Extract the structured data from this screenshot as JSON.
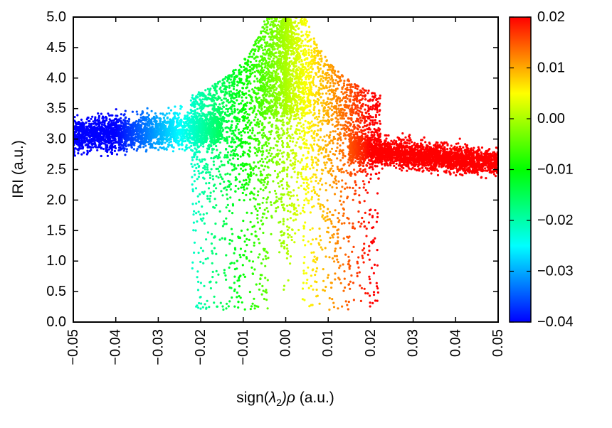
{
  "chart_data": {
    "type": "scatter",
    "title": "",
    "xlabel_parts": {
      "prefix": "sign(",
      "symbol": "λ",
      "subscript": "2",
      "suffix_symbol": ")ρ",
      "unit": " (a.u.)"
    },
    "ylabel": "IRI (a.u.)",
    "xlim": [
      -0.05,
      0.05
    ],
    "ylim": [
      0.0,
      5.0
    ],
    "xticks": [
      "−0.05",
      "−0.04",
      "−0.03",
      "−0.02",
      "−0.01",
      "0.00",
      "0.01",
      "0.02",
      "0.03",
      "0.04",
      "0.05"
    ],
    "yticks": [
      "0.0",
      "0.5",
      "1.0",
      "1.5",
      "2.0",
      "2.5",
      "3.0",
      "3.5",
      "4.0",
      "4.5",
      "5.0"
    ],
    "grid": false,
    "colorbar": {
      "range": [
        -0.04,
        0.02
      ],
      "colormap": [
        "#0000ff",
        "#00ffff",
        "#00ff00",
        "#ffff00",
        "#ff0000"
      ],
      "ticks": [
        "0.02",
        "0.01",
        "0.00",
        "−0.01",
        "−0.02",
        "−0.03",
        "−0.04"
      ],
      "tick_values": [
        0.02,
        0.01,
        0.0,
        -0.01,
        -0.02,
        -0.03,
        -0.04
      ]
    },
    "colored_by": "sign(λ2)ρ",
    "point_clusters": [
      {
        "region": "left tail",
        "x_range": [
          -0.05,
          -0.02
        ],
        "y_center_at_x_range": [
          3.1,
          3.2
        ],
        "y_spread": 0.35
      },
      {
        "region": "left wing",
        "x_range": [
          -0.02,
          -0.003
        ],
        "y_range": [
          0.2,
          4.0
        ]
      },
      {
        "region": "central spike",
        "x_range": [
          -0.006,
          0.006
        ],
        "y_range": [
          3.0,
          5.0
        ]
      },
      {
        "region": "right wing",
        "x_range": [
          0.003,
          0.02
        ],
        "y_range": [
          0.2,
          4.0
        ]
      },
      {
        "region": "right tail",
        "x_range": [
          0.02,
          0.05
        ],
        "y_center_at_x_range": [
          2.85,
          2.55
        ],
        "y_spread": 0.3
      }
    ]
  }
}
